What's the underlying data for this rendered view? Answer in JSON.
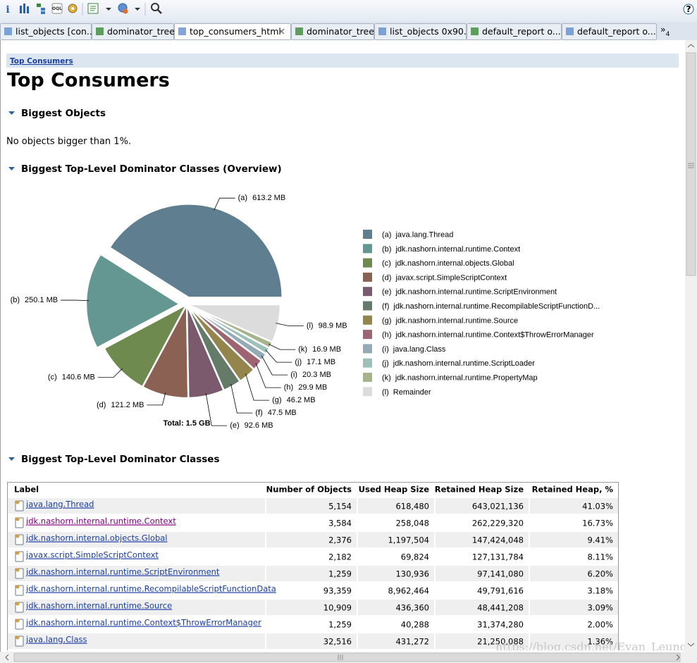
{
  "tabs": [
    "list_objects [con...",
    "dominator_tree",
    "top_consumers_html",
    "dominator_tree",
    "list_objects 0x90...",
    "default_report  o...",
    "default_report  o..."
  ],
  "active_tab": 2,
  "tab_overflow": {
    "arrow": "»",
    "count": "4"
  },
  "help": "?",
  "breadcrumb": "Top Consumers",
  "title": "Top Consumers",
  "sections": [
    {
      "heading": "Biggest Objects",
      "text": "No objects bigger than 1%."
    },
    {
      "heading": "Biggest Top-Level Dominator Classes (Overview)"
    },
    {
      "heading": "Biggest Top-Level Dominator Classes"
    }
  ],
  "chart_data": {
    "type": "pie",
    "letters": [
      "(a)",
      "(b)",
      "(c)",
      "(d)",
      "(e)",
      "(f)",
      "(g)",
      "(h)",
      "(i)",
      "(j)",
      "(k)",
      "(l)"
    ],
    "categories": [
      "java.lang.Thread",
      "jdk.nashorn.internal.runtime.Context",
      "jdk.nashorn.internal.objects.Global",
      "javax.script.SimpleScriptContext",
      "jdk.nashorn.internal.runtime.ScriptEnvironment",
      "jdk.nashorn.internal.runtime.RecompilableScriptFunctionD...",
      "jdk.nashorn.internal.runtime.Source",
      "jdk.nashorn.internal.runtime.Context$ThrowErrorManager",
      "java.lang.Class",
      "jdk.nashorn.internal.runtime.ScriptLoader",
      "jdk.nashorn.internal.runtime.PropertyMap",
      "Remainder"
    ],
    "values": [
      613.2,
      250.1,
      140.6,
      121.2,
      92.6,
      47.5,
      46.2,
      29.9,
      20.3,
      17.1,
      16.9,
      98.9
    ],
    "value_labels": [
      "613.2 MB",
      "250.1 MB",
      "140.6 MB",
      "121.2 MB",
      "92.6 MB",
      "47.5 MB",
      "46.2 MB",
      "29.9 MB",
      "20.3 MB",
      "17.1 MB",
      "16.9 MB",
      "98.9 MB"
    ],
    "colors": [
      "#5f7e8f",
      "#649792",
      "#6e8a4e",
      "#8a6153",
      "#7b5a6e",
      "#647b69",
      "#94854c",
      "#9c6571",
      "#94aab6",
      "#9dc0b9",
      "#a5b48a",
      "#dcdcdc"
    ],
    "exploded": [
      0,
      1
    ],
    "total_label": "Total: 1.5 GB"
  },
  "table": {
    "columns": [
      "Label",
      "Number of Objects",
      "Used Heap Size",
      "Retained Heap Size",
      "Retained Heap, %"
    ],
    "rows": [
      [
        "java.lang.Thread",
        "5,154",
        "618,480",
        "643,021,136",
        "41.03%"
      ],
      [
        "jdk.nashorn.internal.runtime.Context",
        "3,584",
        "258,048",
        "262,229,320",
        "16.73%"
      ],
      [
        "jdk.nashorn.internal.objects.Global",
        "2,376",
        "1,197,504",
        "147,424,048",
        "9.41%"
      ],
      [
        "javax.script.SimpleScriptContext",
        "2,182",
        "69,824",
        "127,131,784",
        "8.11%"
      ],
      [
        "jdk.nashorn.internal.runtime.ScriptEnvironment",
        "1,259",
        "130,936",
        "97,141,080",
        "6.20%"
      ],
      [
        "jdk.nashorn.internal.runtime.RecompilableScriptFunctionData",
        "93,359",
        "8,962,464",
        "49,791,616",
        "3.18%"
      ],
      [
        "jdk.nashorn.internal.runtime.Source",
        "10,909",
        "436,360",
        "48,441,208",
        "3.09%"
      ],
      [
        "jdk.nashorn.internal.runtime.Context$ThrowErrorManager",
        "1,259",
        "40,288",
        "31,374,280",
        "2.00%"
      ],
      [
        "java.lang.Class",
        "32,516",
        "431,272",
        "21,250,088",
        "1.36%"
      ]
    ],
    "visited_rows": [
      1
    ]
  },
  "watermark": "https://blog.csdn.net/Evan_Leung"
}
